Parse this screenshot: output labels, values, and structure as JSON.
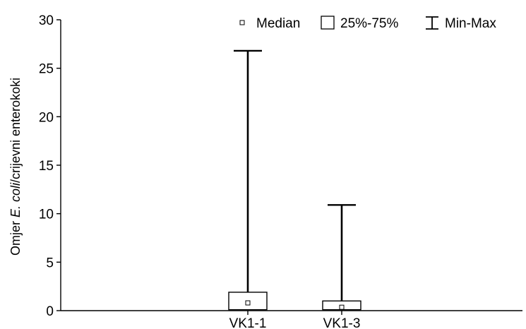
{
  "chart_data": {
    "type": "boxplot",
    "categories": [
      "VK1-1",
      "VK1-3"
    ],
    "series": [
      {
        "category": "VK1-1",
        "min": 0.1,
        "q1": 0.1,
        "median": 0.8,
        "q3": 1.9,
        "max": 26.8
      },
      {
        "category": "VK1-3",
        "min": 0.1,
        "q1": 0.1,
        "median": 0.35,
        "q3": 1.0,
        "max": 10.9
      }
    ],
    "ylabel": {
      "prefix": "Omjer ",
      "italic": "E. coli",
      "suffix": "/crijevni enterokoki"
    },
    "ylim": [
      0,
      30
    ],
    "yticks": [
      0,
      5,
      10,
      15,
      20,
      25,
      30
    ],
    "legend": {
      "position": "top-right",
      "items": [
        "Median",
        "25%-75%",
        "Min-Max"
      ]
    },
    "grid": false
  }
}
